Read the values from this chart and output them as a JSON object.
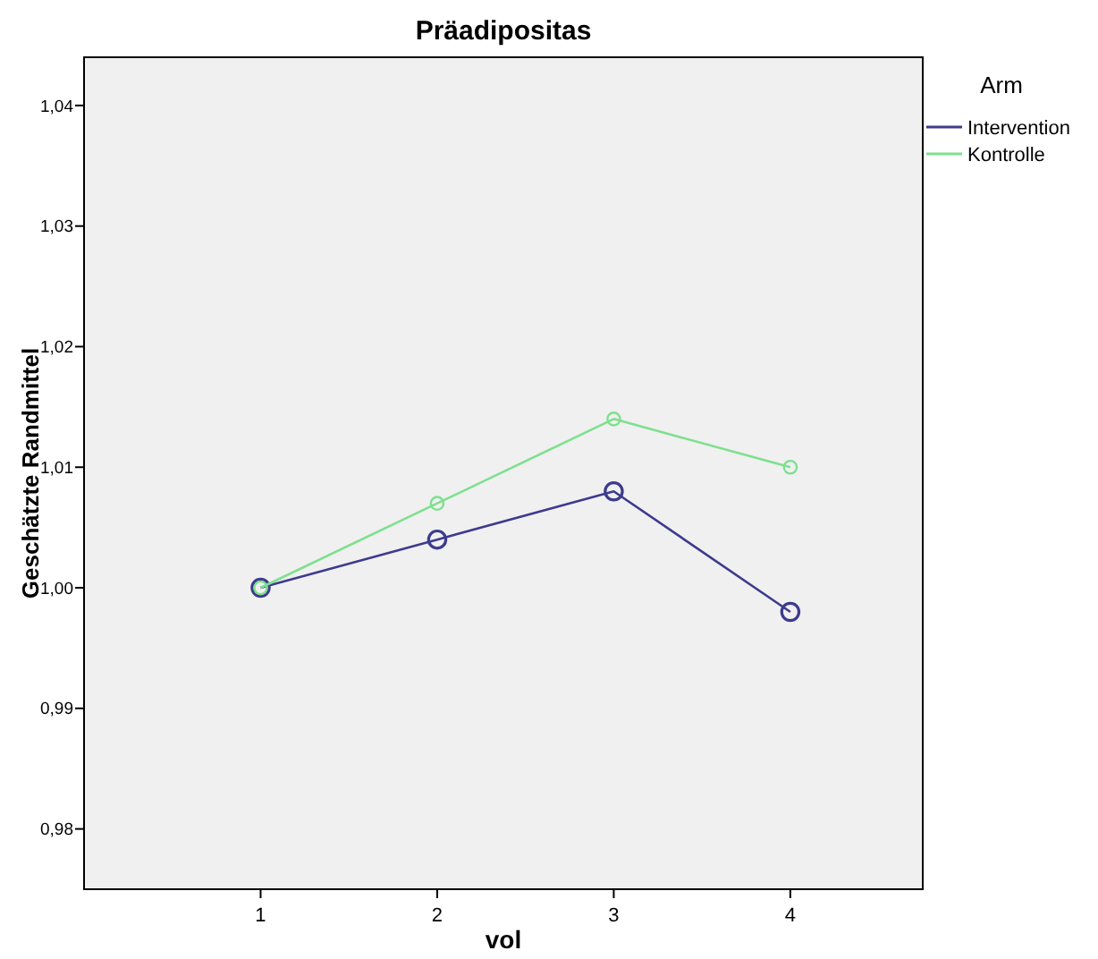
{
  "chart_data": {
    "type": "line",
    "title": "Präadipositas",
    "xlabel": "vol",
    "ylabel": "Geschätzte Randmittel",
    "legend_title": "Arm",
    "legend": "right",
    "marker": "circle",
    "x": [
      1,
      2,
      3,
      4
    ],
    "xlim": [
      0,
      4.75
    ],
    "xticks": [
      1,
      2,
      3,
      4
    ],
    "ylim": [
      0.975,
      1.044
    ],
    "yticks": [
      {
        "value": 0.98,
        "label": "0,98"
      },
      {
        "value": 0.99,
        "label": "0,99"
      },
      {
        "value": 1.0,
        "label": "1,00"
      },
      {
        "value": 1.01,
        "label": "1,01"
      },
      {
        "value": 1.02,
        "label": "1,02"
      },
      {
        "value": 1.03,
        "label": "1,03"
      },
      {
        "value": 1.04,
        "label": "1,04"
      }
    ],
    "series": [
      {
        "name": "Intervention",
        "color": "#3d3b8e",
        "values": [
          1.0,
          1.004,
          1.008,
          0.998
        ]
      },
      {
        "name": "Kontrolle",
        "color": "#7ee08e",
        "values": [
          1.0,
          1.007,
          1.014,
          1.01
        ]
      }
    ]
  }
}
